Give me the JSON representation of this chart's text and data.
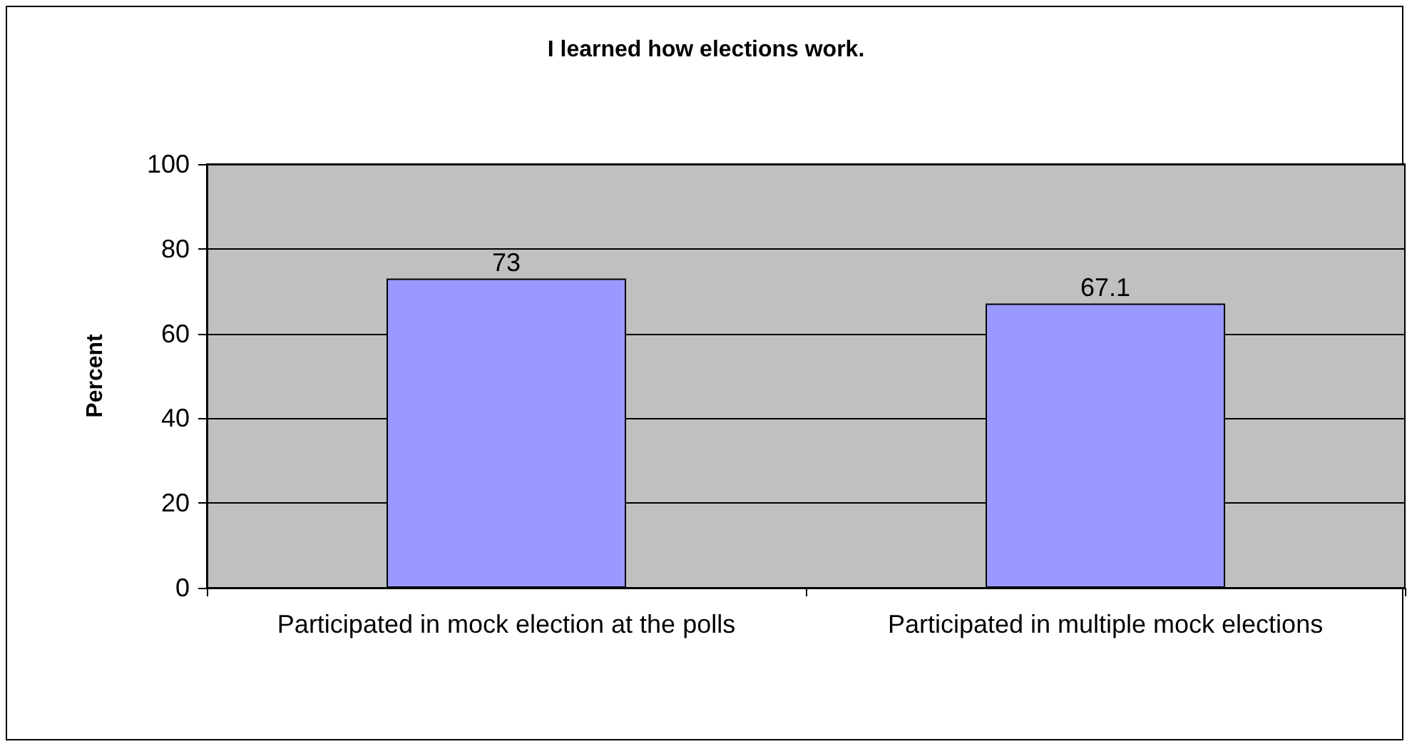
{
  "chart_data": {
    "type": "bar",
    "title": "I learned how elections work.",
    "ylabel": "Percent",
    "categories": [
      "Participated in mock election at the polls",
      "Participated in multiple mock elections"
    ],
    "values": [
      73,
      67.1
    ],
    "color": "#9999ff",
    "ylim": [
      0,
      100
    ],
    "yticks": [
      0,
      20,
      40,
      60,
      80,
      100
    ],
    "grid": "y",
    "data_labels": true
  }
}
